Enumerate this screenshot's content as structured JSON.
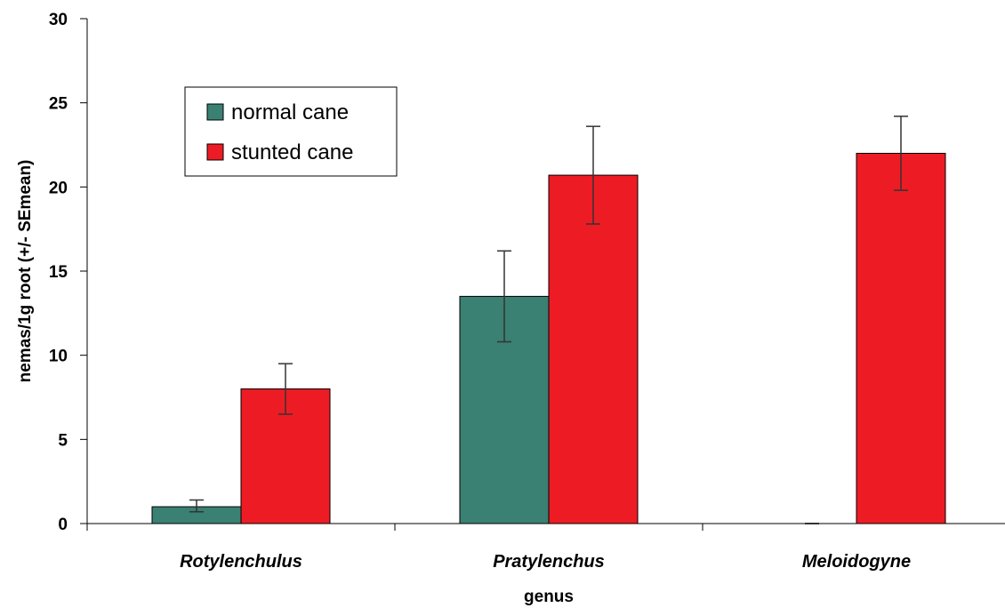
{
  "chart_data": {
    "type": "bar",
    "title": "",
    "xlabel": "genus",
    "ylabel": "nemas/1g root (+/- SEmean)",
    "ylim": [
      0,
      30
    ],
    "yticks": [
      0,
      5,
      10,
      15,
      20,
      25,
      30
    ],
    "categories": [
      "Rotylenchulus",
      "Pratylenchus",
      "Meloidogyne"
    ],
    "series": [
      {
        "name": "normal cane",
        "color": "#3a8073",
        "values": [
          1,
          13.5,
          0
        ],
        "error_low": [
          0.7,
          10.8,
          0
        ],
        "error_high": [
          1.4,
          16.2,
          0
        ]
      },
      {
        "name": "stunted cane",
        "color": "#ed1c24",
        "values": [
          8,
          20.7,
          22
        ],
        "error_low": [
          6.5,
          17.8,
          19.8
        ],
        "error_high": [
          9.5,
          23.6,
          24.2
        ]
      }
    ],
    "legend": "top-left inside plot",
    "grid": false
  }
}
